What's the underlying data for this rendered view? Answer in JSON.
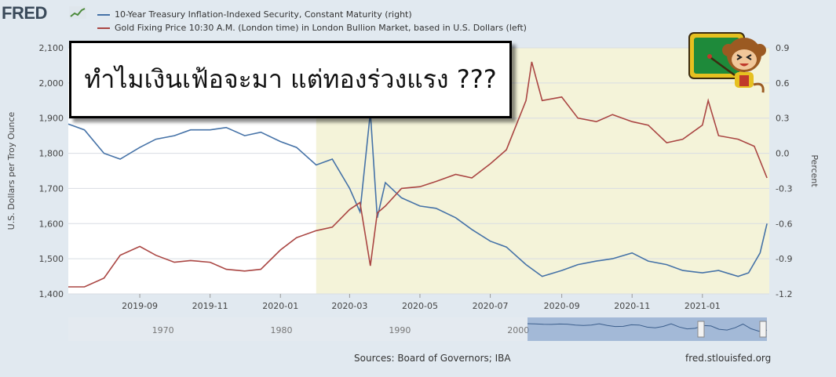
{
  "header": {
    "logo_text": "FRED",
    "legend": [
      {
        "label": "10-Year Treasury Inflation-Indexed Security, Constant Maturity (right)",
        "color": "#4572a7"
      },
      {
        "label": "Gold Fixing Price 10:30 A.M. (London time) in London Bullion Market, based in U.S. Dollars (left)",
        "color": "#aa4643"
      }
    ]
  },
  "overlay": {
    "text": "ทำไมเงินเฟ้อจะมา แต่ทองร่วงแรง ???"
  },
  "footer": {
    "sources": "Sources: Board of Governors; IBA",
    "site": "fred.stlouisfed.org"
  },
  "chart_data": {
    "type": "line",
    "x_ticks": [
      "2019-09",
      "2019-11",
      "2020-01",
      "2020-03",
      "2020-05",
      "2020-07",
      "2020-09",
      "2020-11",
      "2021-01"
    ],
    "ylabel_left": "U.S. Dollars per Troy Ounce",
    "ylabel_right": "Percent",
    "ylim_left": [
      1400,
      2100
    ],
    "ylim_right": [
      -1.2,
      0.9
    ],
    "y_ticks_left": [
      "1,400",
      "1,500",
      "1,600",
      "1,700",
      "1,800",
      "1,900",
      "2,000",
      "2,100"
    ],
    "y_ticks_right": [
      "-1.2",
      "-0.9",
      "-0.6",
      "-0.3",
      "0.0",
      "0.3",
      "0.6",
      "0.9"
    ],
    "shaded_region": {
      "start": "2020-02-01",
      "end": "2021-02-28",
      "color": "#f4f3d9"
    },
    "grid": true,
    "series": [
      {
        "name": "10-Year Treasury Inflation-Indexed Security, Constant Maturity (right)",
        "axis": "right",
        "color": "#4572a7",
        "x": [
          "2019-07-01",
          "2019-07-15",
          "2019-08-01",
          "2019-08-15",
          "2019-09-01",
          "2019-09-15",
          "2019-10-01",
          "2019-10-15",
          "2019-11-01",
          "2019-11-15",
          "2019-12-01",
          "2019-12-15",
          "2020-01-01",
          "2020-01-15",
          "2020-02-01",
          "2020-02-15",
          "2020-03-01",
          "2020-03-10",
          "2020-03-19",
          "2020-03-25",
          "2020-04-01",
          "2020-04-15",
          "2020-05-01",
          "2020-05-15",
          "2020-06-01",
          "2020-06-15",
          "2020-07-01",
          "2020-07-15",
          "2020-08-01",
          "2020-08-15",
          "2020-09-01",
          "2020-09-15",
          "2020-10-01",
          "2020-10-15",
          "2020-11-01",
          "2020-11-15",
          "2020-12-01",
          "2020-12-15",
          "2021-01-01",
          "2021-01-15",
          "2021-02-01",
          "2021-02-10",
          "2021-02-20",
          "2021-02-26"
        ],
        "y": [
          0.25,
          0.2,
          0.0,
          -0.05,
          0.05,
          0.12,
          0.15,
          0.2,
          0.2,
          0.22,
          0.15,
          0.18,
          0.1,
          0.05,
          -0.1,
          -0.05,
          -0.3,
          -0.5,
          0.35,
          -0.55,
          -0.25,
          -0.38,
          -0.45,
          -0.47,
          -0.55,
          -0.65,
          -0.75,
          -0.8,
          -0.95,
          -1.05,
          -1.0,
          -0.95,
          -0.92,
          -0.9,
          -0.85,
          -0.92,
          -0.95,
          -1.0,
          -1.02,
          -1.0,
          -1.05,
          -1.02,
          -0.85,
          -0.6
        ]
      },
      {
        "name": "Gold Fixing Price 10:30 A.M. (London time) in London Bullion Market, based in U.S. Dollars (left)",
        "axis": "left",
        "color": "#aa4643",
        "x": [
          "2019-07-01",
          "2019-07-15",
          "2019-08-01",
          "2019-08-15",
          "2019-09-01",
          "2019-09-15",
          "2019-10-01",
          "2019-10-15",
          "2019-11-01",
          "2019-11-15",
          "2019-12-01",
          "2019-12-15",
          "2020-01-01",
          "2020-01-15",
          "2020-02-01",
          "2020-02-15",
          "2020-03-01",
          "2020-03-10",
          "2020-03-19",
          "2020-03-25",
          "2020-04-01",
          "2020-04-15",
          "2020-05-01",
          "2020-05-15",
          "2020-06-01",
          "2020-06-15",
          "2020-07-01",
          "2020-07-15",
          "2020-08-01",
          "2020-08-06",
          "2020-08-15",
          "2020-09-01",
          "2020-09-15",
          "2020-10-01",
          "2020-10-15",
          "2020-11-01",
          "2020-11-15",
          "2020-12-01",
          "2020-12-15",
          "2021-01-01",
          "2021-01-06",
          "2021-01-15",
          "2021-02-01",
          "2021-02-15",
          "2021-02-26"
        ],
        "y": [
          1420,
          1420,
          1445,
          1510,
          1535,
          1510,
          1490,
          1495,
          1490,
          1470,
          1465,
          1470,
          1525,
          1560,
          1580,
          1590,
          1640,
          1660,
          1480,
          1630,
          1650,
          1700,
          1705,
          1720,
          1740,
          1730,
          1770,
          1810,
          1950,
          2060,
          1950,
          1960,
          1900,
          1890,
          1910,
          1890,
          1880,
          1830,
          1840,
          1880,
          1950,
          1850,
          1840,
          1820,
          1730
        ]
      }
    ],
    "navigator_ticks": [
      "1970",
      "1980",
      "1990",
      "2000"
    ]
  }
}
